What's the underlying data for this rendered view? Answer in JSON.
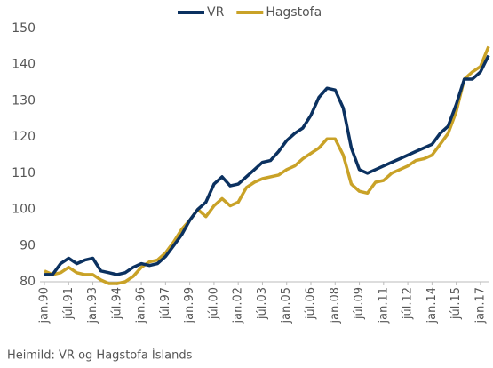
{
  "chart_data": {
    "type": "line",
    "categories": [
      "jan.90",
      null,
      null,
      "júl.91",
      null,
      null,
      "jan.93",
      null,
      null,
      "júl.94",
      null,
      null,
      "jan.96",
      null,
      null,
      "júl.97",
      null,
      null,
      "jan.99",
      null,
      null,
      "júl.00",
      null,
      null,
      "jan.02",
      null,
      null,
      "júl.03",
      null,
      null,
      "jan.05",
      null,
      null,
      "júl.06",
      null,
      null,
      "jan.08",
      null,
      null,
      "júl.09",
      null,
      null,
      "jan.11",
      null,
      null,
      "júl.12",
      null,
      null,
      "jan.14",
      null,
      null,
      "júl.15",
      null,
      null,
      "jan.17",
      null
    ],
    "series": [
      {
        "name": "VR",
        "color": "#0b3160",
        "values": [
          82,
          82,
          85,
          86.5,
          85,
          86,
          86.5,
          83,
          82.5,
          82,
          82.5,
          84,
          85,
          84.5,
          85,
          87,
          90,
          93,
          97,
          100,
          102,
          107,
          109,
          106.5,
          107,
          109,
          111,
          113,
          113.5,
          116,
          119,
          121,
          122.5,
          126,
          131,
          133.5,
          133,
          128,
          117,
          111,
          110,
          111,
          112,
          113,
          114,
          115,
          116,
          117,
          118,
          121,
          123,
          129,
          136,
          136,
          138,
          142.5
        ]
      },
      {
        "name": "Hagstofa",
        "color": "#c9a227",
        "values": [
          83,
          82,
          82.5,
          84,
          82.5,
          82,
          82,
          80.5,
          79.5,
          79.5,
          80,
          81.5,
          84,
          85.5,
          86,
          88,
          91,
          94.5,
          97,
          100,
          98,
          101,
          103,
          101,
          102,
          106,
          107.5,
          108.5,
          109,
          109.5,
          111,
          112,
          114,
          115.5,
          117,
          119.5,
          119.5,
          115,
          107,
          105,
          104.5,
          107.5,
          108,
          110,
          111,
          112,
          113.5,
          114,
          115,
          118,
          121,
          127,
          136,
          138,
          139.5,
          145
        ]
      }
    ],
    "ylim": [
      80,
      150
    ],
    "yticks": [
      80,
      90,
      100,
      110,
      120,
      130,
      140,
      150
    ],
    "grid": false,
    "legend": "top",
    "source": "Heimild: VR og Hagstofa Íslands"
  }
}
